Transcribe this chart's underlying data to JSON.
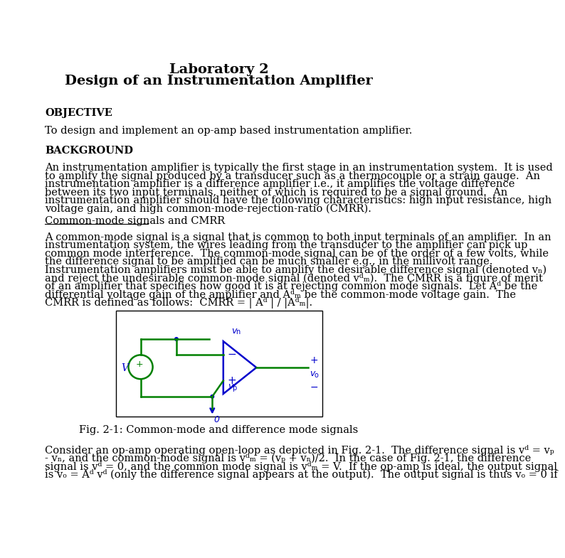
{
  "title_line1": "Laboratory 2",
  "title_line2": "Design of an Instrumentation Amplifier",
  "section1_heading": "OBJECTIVE",
  "section1_text": "To design and implement an op-amp based instrumentation amplifier.",
  "section2_heading": "BACKGROUND",
  "subsection1_heading": "Common-mode signals and CMRR",
  "fig_caption": "Fig. 2-1: Common-mode and difference mode signals",
  "bg_color": "#ffffff",
  "text_color": "#000000",
  "body_fontsize": 10.5,
  "title_fontsize": 14,
  "line_color_green": "#008000",
  "line_color_blue": "#0000cc",
  "para1_lines": [
    "An instrumentation amplifier is typically the first stage in an instrumentation system.  It is used",
    "to amplify the signal produced by a transducer such as a thermocouple or a strain gauge.  An",
    "instrumentation amplifier is a difference amplifier i.e., it amplifies the voltage difference",
    "between its two input terminals, neither of which is required to be a signal ground.  An",
    "instrumentation amplifier should have the following characteristics: high input resistance, high",
    "voltage gain, and high common-mode-rejection-ratio (CMRR)."
  ],
  "para2_lines": [
    "A common-mode signal is a signal that is common to both input terminals of an amplifier.  In an",
    "instrumentation system, the wires leading from the transducer to the amplifier can pick up",
    "common mode interference.  The common-mode signal can be of the order of a few volts, while",
    "the difference signal to be amplified can be much smaller e.g., in the millivolt range.",
    "Instrumentation amplifiers must be able to amplify the desirable difference signal (denoted vₙ)",
    "and reject the undesirable common-mode signal (denoted vᵈₘ).  The CMRR is a figure of merit",
    "of an amplifier that specifies how good it is at rejecting common mode signals.  Let Aᵈ be the",
    "differential voltage gain of the amplifier and Aᵈₘ be the common-mode voltage gain.  The",
    "CMRR is defined as follows:  CMRR = | Aᵈ | / |Aᵈₘ|."
  ],
  "para3_lines": [
    "Consider an op-amp operating open-loop as depicted in Fig. 2-1.  The difference signal is vᵈ = vₚ",
    "- vₙ, and the common-mode signal is vᵈₘ = (vₚ + vₙ)/2.  In the case of Fig. 2-1, the difference",
    "signal is vᵈ = 0, and the common mode signal is vᵈₘ = V.  If the op-amp is ideal, the output signal",
    "is vₒ = Aᵈ vᵈ (only the difference signal appears at the output).  The output signal is thus vₒ = 0 if"
  ]
}
